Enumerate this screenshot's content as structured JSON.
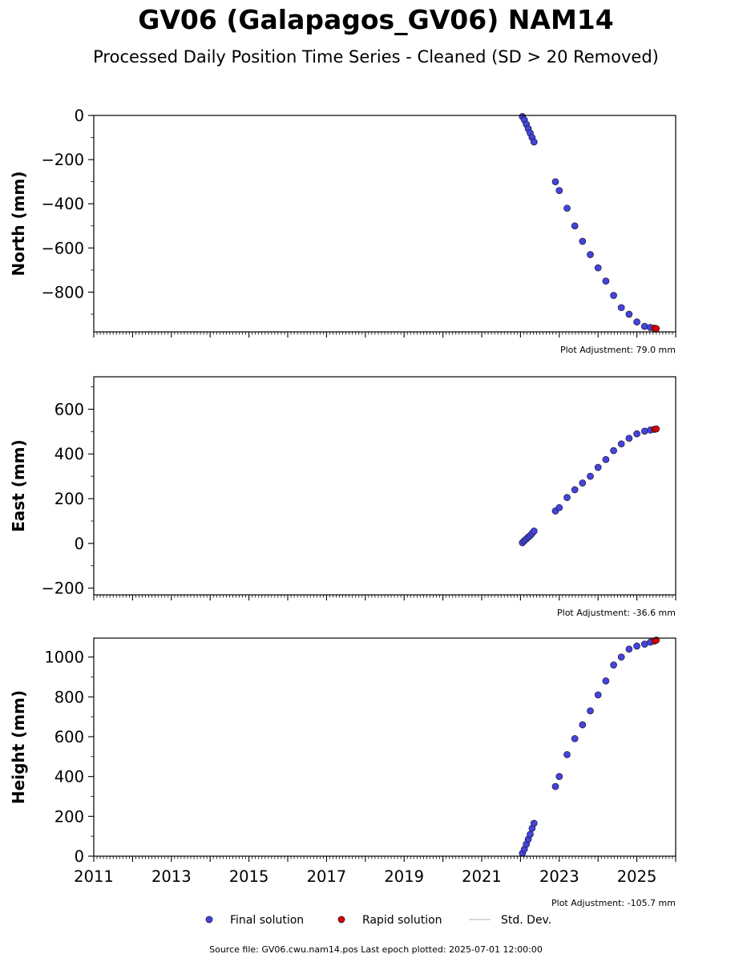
{
  "title": "GV06 (Galapagos_GV06) NAM14",
  "subtitle": "Processed Daily Position Time Series - Cleaned (SD > 20 Removed)",
  "colors": {
    "final": "#4444dd",
    "rapid": "#dd0000",
    "edge": "#1a1a3a",
    "std": "#cccccc"
  },
  "legend": {
    "final_label": "Final solution",
    "rapid_label": "Rapid solution",
    "std_label": "Std. Dev."
  },
  "footer": "Source file: GV06.cwu.nam14.pos  Last epoch plotted: 2025-07-01 12:00:00",
  "chart_data": [
    {
      "type": "scatter",
      "ylabel": "North (mm)",
      "xlim": [
        2011.0,
        2026.0
      ],
      "ylim": [
        -980,
        0
      ],
      "yticks": [
        0,
        -200,
        -400,
        -600,
        -800
      ],
      "yticklabels": [
        "0",
        "−200",
        "−400",
        "−600",
        "−800"
      ],
      "adjustment": "Plot Adjustment: 79.0 mm",
      "series": [
        {
          "role": "final",
          "x": [
            2022.05,
            2022.1,
            2022.15,
            2022.2,
            2022.25,
            2022.3,
            2022.35
          ],
          "y": [
            -5,
            -20,
            -40,
            -60,
            -80,
            -100,
            -120
          ]
        },
        {
          "role": "final",
          "x": [
            2022.9,
            2023.0,
            2023.2,
            2023.4,
            2023.6,
            2023.8,
            2024.0,
            2024.2,
            2024.4,
            2024.6,
            2024.8,
            2025.0,
            2025.2,
            2025.35
          ],
          "y": [
            -300,
            -340,
            -420,
            -500,
            -570,
            -630,
            -690,
            -750,
            -815,
            -870,
            -900,
            -935,
            -955,
            -960
          ]
        },
        {
          "role": "rapid",
          "x": [
            2025.45,
            2025.5
          ],
          "y": [
            -963,
            -965
          ]
        }
      ]
    },
    {
      "type": "scatter",
      "ylabel": "East (mm)",
      "xlim": [
        2011.0,
        2026.0
      ],
      "ylim": [
        -230,
        745
      ],
      "yticks": [
        600,
        400,
        200,
        0,
        -200
      ],
      "yticklabels": [
        "600",
        "400",
        "200",
        "0",
        "−200"
      ],
      "adjustment": "Plot Adjustment: -36.6 mm",
      "series": [
        {
          "role": "final",
          "x": [
            2022.05,
            2022.1,
            2022.15,
            2022.2,
            2022.25,
            2022.3,
            2022.35
          ],
          "y": [
            3,
            12,
            20,
            28,
            35,
            45,
            55
          ]
        },
        {
          "role": "final",
          "x": [
            2022.9,
            2023.0,
            2023.2,
            2023.4,
            2023.6,
            2023.8,
            2024.0,
            2024.2,
            2024.4,
            2024.6,
            2024.8,
            2025.0,
            2025.2,
            2025.35
          ],
          "y": [
            145,
            160,
            205,
            240,
            270,
            300,
            340,
            375,
            415,
            445,
            470,
            490,
            502,
            507
          ]
        },
        {
          "role": "rapid",
          "x": [
            2025.45,
            2025.5
          ],
          "y": [
            510,
            512
          ]
        }
      ]
    },
    {
      "type": "scatter",
      "ylabel": "Height (mm)",
      "xlim": [
        2011.0,
        2026.0
      ],
      "ylim": [
        0,
        1095
      ],
      "yticks": [
        1000,
        800,
        600,
        400,
        200,
        0
      ],
      "yticklabels": [
        "1000",
        "800",
        "600",
        "400",
        "200",
        "0"
      ],
      "xticks": [
        2011,
        2013,
        2015,
        2017,
        2019,
        2021,
        2023,
        2025
      ],
      "xticklabels": [
        "2011",
        "2013",
        "2015",
        "2017",
        "2019",
        "2021",
        "2023",
        "2025"
      ],
      "adjustment": "Plot Adjustment: -105.7 mm",
      "series": [
        {
          "role": "final",
          "x": [
            2022.05,
            2022.1,
            2022.15,
            2022.2,
            2022.25,
            2022.3,
            2022.35
          ],
          "y": [
            15,
            35,
            60,
            85,
            110,
            140,
            165
          ]
        },
        {
          "role": "final",
          "x": [
            2022.9,
            2023.0,
            2023.2,
            2023.4,
            2023.6,
            2023.8,
            2024.0,
            2024.2,
            2024.4,
            2024.6,
            2024.8,
            2025.0,
            2025.2,
            2025.35
          ],
          "y": [
            350,
            400,
            510,
            590,
            660,
            730,
            810,
            880,
            960,
            1000,
            1040,
            1055,
            1065,
            1075
          ]
        },
        {
          "role": "rapid",
          "x": [
            2025.45,
            2025.5
          ],
          "y": [
            1080,
            1085
          ]
        }
      ]
    }
  ]
}
